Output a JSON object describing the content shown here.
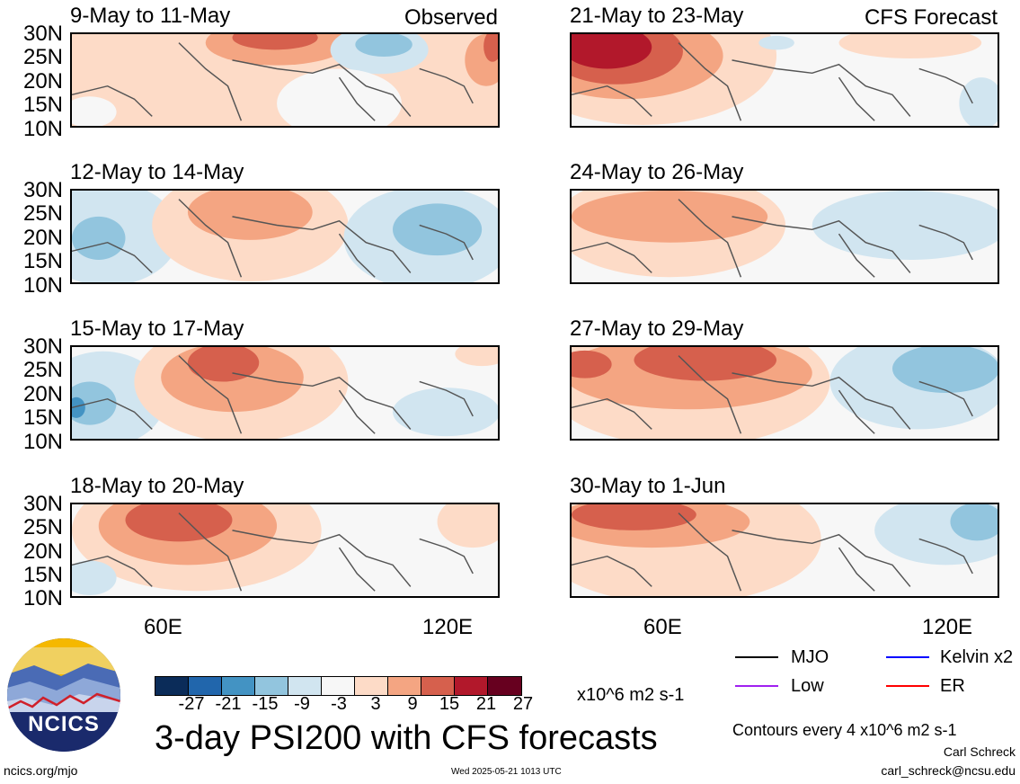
{
  "header": {
    "observed_label": "Observed",
    "forecast_label": "CFS Forecast"
  },
  "panels_left": [
    {
      "title": "9-May to 11-May"
    },
    {
      "title": "12-May to 14-May"
    },
    {
      "title": "15-May to 17-May"
    },
    {
      "title": "18-May to 20-May"
    }
  ],
  "panels_right": [
    {
      "title": "21-May to 23-May"
    },
    {
      "title": "24-May to 26-May"
    },
    {
      "title": "27-May to 29-May"
    },
    {
      "title": "30-May to 1-Jun"
    }
  ],
  "y_ticks": [
    "30N",
    "25N",
    "20N",
    "15N",
    "10N"
  ],
  "x_ticks": [
    "60E",
    "120E"
  ],
  "colorbar": {
    "colors": [
      "#0b2c59",
      "#2166ac",
      "#4393c3",
      "#92c5de",
      "#d1e5f0",
      "#f7f7f7",
      "#fddbc7",
      "#f4a582",
      "#d6604d",
      "#b2182b",
      "#67001f"
    ],
    "labels": [
      "-27",
      "-21",
      "-15",
      "-9",
      "-3",
      "3",
      "9",
      "15",
      "21",
      "27"
    ],
    "units": "x10^6 m2 s-1"
  },
  "legend": [
    {
      "label": "MJO",
      "color": "#000000"
    },
    {
      "label": "Kelvin x2",
      "color": "#0000ff"
    },
    {
      "label": "Low",
      "color": "#a020f0"
    },
    {
      "label": "ER",
      "color": "#ff0000"
    }
  ],
  "logo": {
    "text": "NCICS"
  },
  "main_title": "3-day PSI200 with CFS forecasts",
  "contour_note": "Contours every 4 x10^6 m2 s-1",
  "author": "Carl Schreck",
  "email": "carl_schreck@ncsu.edu",
  "website": "ncics.org/mjo",
  "timestamp": "Wed 2025-05-21 1013 UTC"
}
